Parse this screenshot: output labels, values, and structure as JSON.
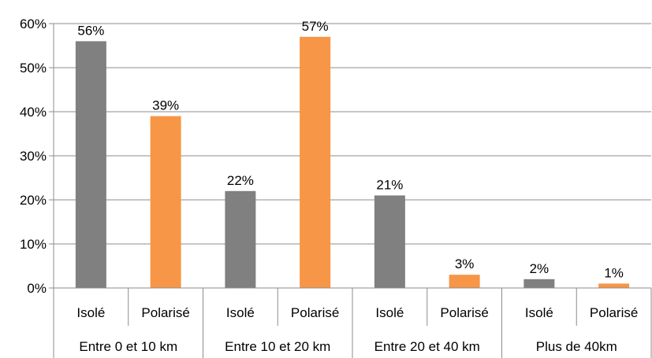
{
  "chart_data": {
    "type": "bar",
    "title": "",
    "xlabel": "",
    "ylabel": "",
    "ylim": [
      0,
      60
    ],
    "yticks": [
      "0%",
      "10%",
      "20%",
      "30%",
      "40%",
      "50%",
      "60%"
    ],
    "yticks_values": [
      0,
      10,
      20,
      30,
      40,
      50,
      60
    ],
    "grid": true,
    "legend": "none",
    "groups": [
      "Entre 0 et 10 km",
      "Entre 10 et 20 km",
      "Entre 20 et 40 km",
      "Plus de 40km"
    ],
    "categories": [
      "Isolé",
      "Polarisé",
      "Isolé",
      "Polarisé",
      "Isolé",
      "Polarisé",
      "Isolé",
      "Polarisé"
    ],
    "values": [
      56,
      39,
      22,
      57,
      21,
      3,
      2,
      1
    ],
    "data_labels": [
      "56%",
      "39%",
      "22%",
      "57%",
      "21%",
      "3%",
      "2%",
      "1%"
    ],
    "colors": {
      "Isolé": "#808080",
      "Polarisé": "#F79646",
      "grid": "#8c8c8c",
      "axis": "#8c8c8c"
    }
  }
}
